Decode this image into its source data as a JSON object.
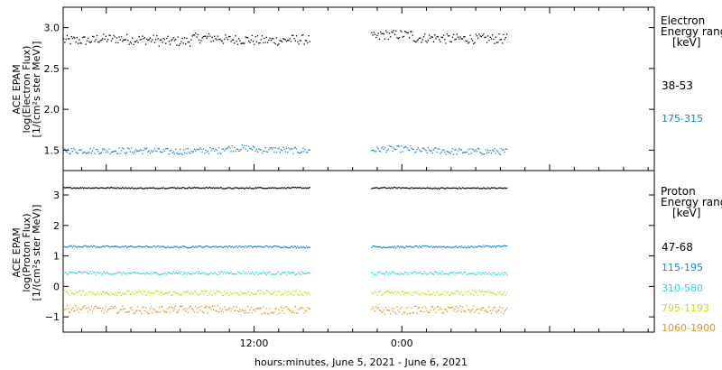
{
  "x_title": "hours:minutes, June  5, 2021 - June  6, 2021",
  "x_ticks": [
    {
      "label": "12:00",
      "hour": 12
    },
    {
      "label": "0:00",
      "hour": 24
    }
  ],
  "chart_data": [
    {
      "type": "scatter",
      "ylabel_lines": [
        "ACE EPAM",
        "log(Electron Flux)",
        "[1/(cm²s ster MeV)]"
      ],
      "ylim": [
        1.25,
        3.25
      ],
      "xlim_hours": [
        -3.5,
        44.5
      ],
      "y_ticks": [
        1.5,
        2.0,
        2.5,
        3.0
      ],
      "y_tick_labels": [
        "1.5",
        "2.0",
        "2.5",
        "3.0"
      ],
      "legend_title_lines": [
        "Electron",
        "Energy range",
        "[keV]"
      ],
      "data_gap_hours": [
        16.5,
        21.5
      ],
      "data_end_hour": 32.5,
      "series": [
        {
          "name": "38-53",
          "color": "#000000",
          "mean": 2.86,
          "noise": 0.06,
          "values": [
            2.85,
            2.87,
            2.86,
            2.84,
            2.88,
            2.86,
            2.85,
            2.86,
            2.9,
            2.89,
            2.92,
            2.88,
            2.87,
            2.87
          ]
        },
        {
          "name": "175-315",
          "color": "#1e7fd0",
          "mean": 1.5,
          "noise": 0.04,
          "values": [
            1.5,
            1.5,
            1.5,
            1.49,
            1.5,
            1.53,
            1.51,
            1.5,
            1.51,
            1.51,
            1.52,
            1.5,
            1.49,
            1.49
          ]
        }
      ]
    },
    {
      "type": "scatter",
      "ylabel_lines": [
        "ACE EPAM",
        "log(Proton Flux)",
        "[1/(cm²s ster MeV)]"
      ],
      "ylim": [
        -1.5,
        3.8
      ],
      "xlim_hours": [
        -3.5,
        44.5
      ],
      "y_ticks": [
        -1,
        0,
        1,
        2,
        3
      ],
      "y_tick_labels": [
        "−1",
        "0",
        "1",
        "2",
        "3"
      ],
      "legend_title_lines": [
        "Proton",
        "Energy range",
        "[keV]"
      ],
      "data_gap_hours": [
        16.5,
        21.5
      ],
      "data_end_hour": 32.5,
      "series": [
        {
          "name": "47-68",
          "color": "#000000",
          "mean": 3.25,
          "noise": 0.02,
          "values": [
            3.25,
            3.25,
            3.24,
            3.25,
            3.25,
            3.24,
            3.25,
            3.25,
            3.3,
            3.24,
            3.25,
            3.24,
            3.24,
            3.24
          ]
        },
        {
          "name": "115-195",
          "color": "#1e7fd0",
          "mean": 1.32,
          "noise": 0.03,
          "values": [
            1.33,
            1.32,
            1.32,
            1.31,
            1.32,
            1.32,
            1.32,
            1.31,
            1.32,
            1.32,
            1.31,
            1.32,
            1.31,
            1.33
          ]
        },
        {
          "name": "310-580",
          "color": "#2ad8d8",
          "mean": 0.45,
          "noise": 0.05,
          "values": [
            0.46,
            0.45,
            0.44,
            0.45,
            0.45,
            0.46,
            0.45,
            0.44,
            0.45,
            0.44,
            0.45,
            0.46,
            0.44,
            0.44
          ]
        },
        {
          "name": "795-1193",
          "color": "#c8dc1c",
          "mean": -0.2,
          "noise": 0.08,
          "values": [
            -0.19,
            -0.2,
            -0.2,
            -0.21,
            -0.2,
            -0.2,
            -0.19,
            -0.2,
            -0.2,
            -0.21,
            -0.2,
            -0.2,
            -0.2,
            -0.2
          ]
        },
        {
          "name": "1060-1900",
          "color": "#e8901c",
          "mean": -0.75,
          "noise": 0.12,
          "values": [
            -0.72,
            -0.75,
            -0.76,
            -0.74,
            -0.73,
            -0.75,
            -0.77,
            -0.76,
            -0.72,
            -0.76,
            -0.78,
            -0.75,
            -0.74,
            -0.77
          ]
        }
      ]
    }
  ]
}
